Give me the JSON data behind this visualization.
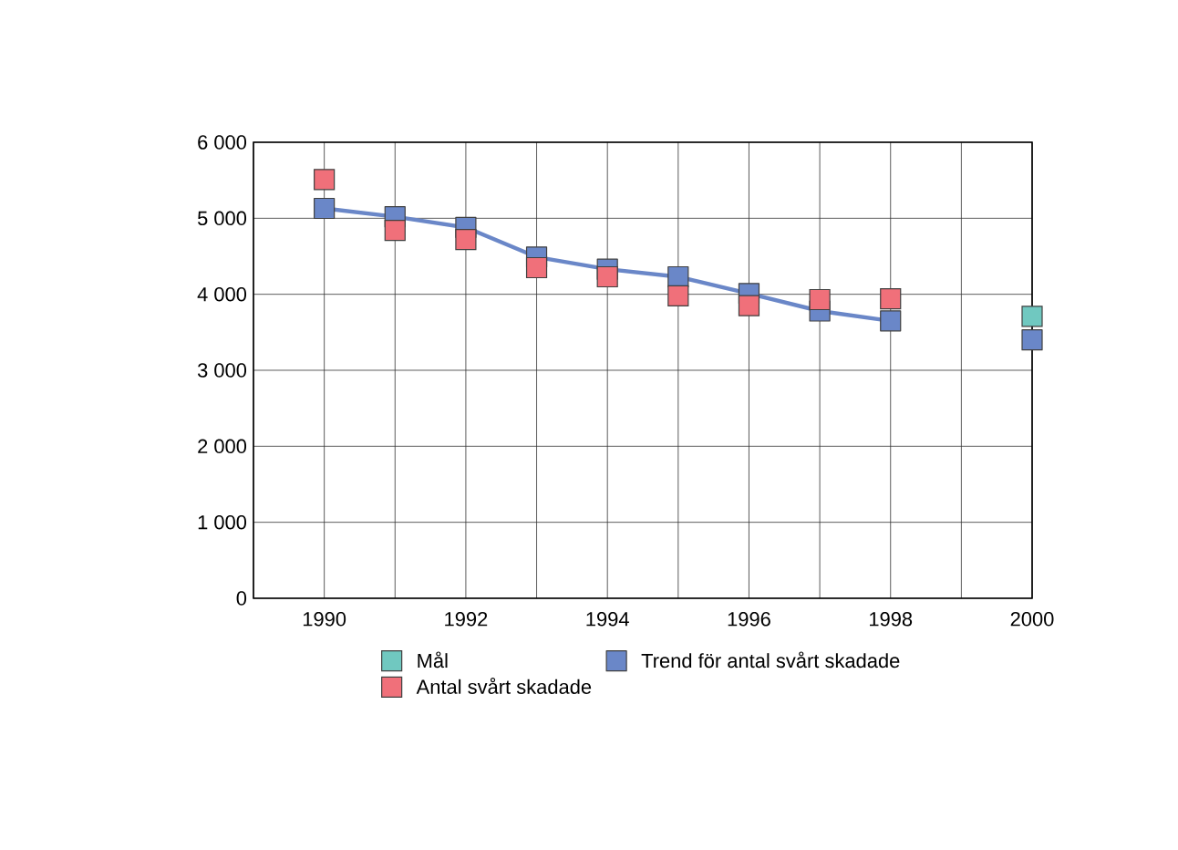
{
  "chart_data": {
    "type": "line",
    "x": [
      1990,
      1991,
      1992,
      1993,
      1994,
      1995,
      1996,
      1997,
      1998,
      1999,
      2000
    ],
    "series": [
      {
        "name": "Mål",
        "type": "scatter",
        "color": "#70c8c0",
        "values": [
          null,
          null,
          null,
          null,
          null,
          null,
          null,
          null,
          null,
          null,
          3710
        ]
      },
      {
        "name": "Trend för antal svårt skadade",
        "color": "#6a87c8",
        "values": [
          5130,
          5020,
          4880,
          4490,
          4330,
          4230,
          4010,
          3780,
          3650,
          null,
          3400
        ]
      },
      {
        "name": "Antal svårt skadade",
        "type": "scatter",
        "color": "#f0707a",
        "values": [
          5510,
          4840,
          4720,
          4350,
          4230,
          3980,
          3850,
          3930,
          3940,
          null,
          null
        ]
      }
    ],
    "xlim": [
      1989,
      2000
    ],
    "xticks": [
      {
        "value": 1989,
        "label": null
      },
      1990,
      {
        "value": 1991,
        "label": null
      },
      1992,
      {
        "value": 1993,
        "label": null
      },
      1994,
      {
        "value": 1995,
        "label": null
      },
      1996,
      {
        "value": 1997,
        "label": null
      },
      1998,
      {
        "value": 1999,
        "label": null
      },
      2000
    ],
    "ylim": [
      0,
      6000
    ],
    "yticks": [
      {
        "value": 0,
        "label": "0"
      },
      {
        "value": 1000,
        "label": "1 000"
      },
      {
        "value": 2000,
        "label": "2 000"
      },
      {
        "value": 3000,
        "label": "3 000"
      },
      {
        "value": 4000,
        "label": "4 000"
      },
      {
        "value": 5000,
        "label": "5 000"
      },
      {
        "value": 6000,
        "label": "6 000"
      }
    ],
    "grid": true,
    "legend": "bottom",
    "marker": "square"
  }
}
